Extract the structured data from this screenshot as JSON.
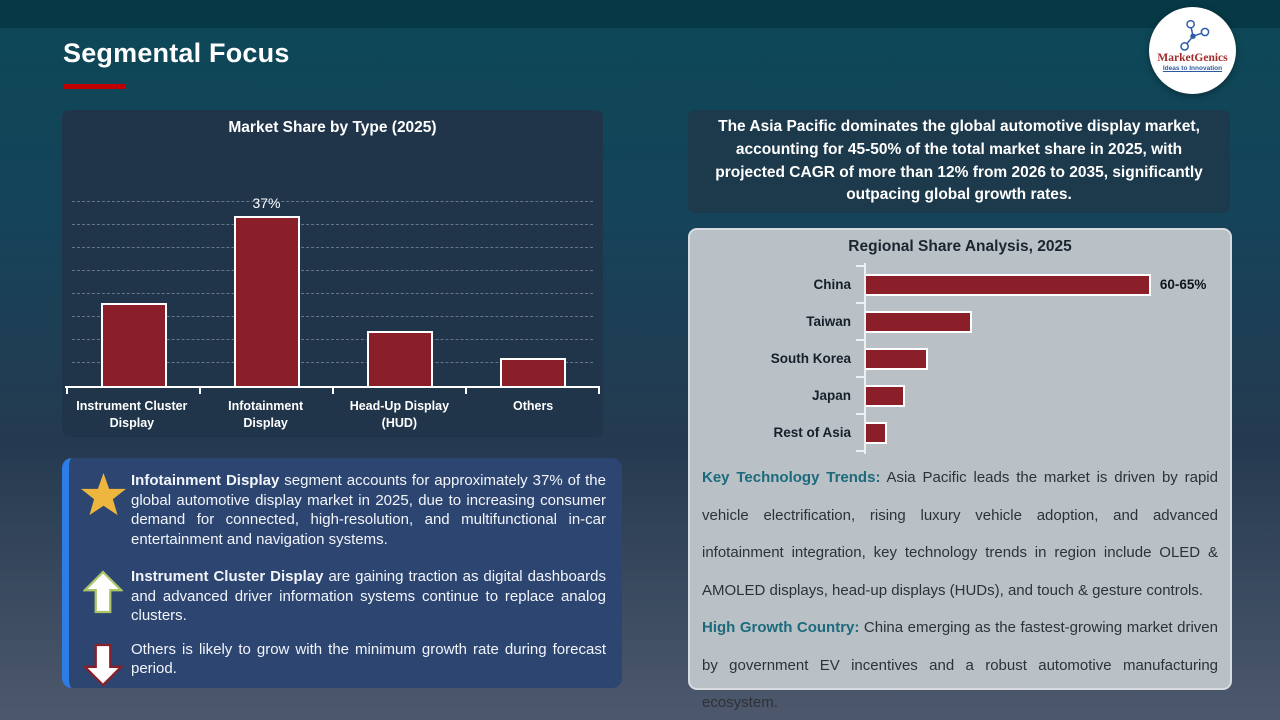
{
  "slide": {
    "title": "Segmental Focus",
    "accent_color": "#c00000",
    "bar_color": "#8b1f29"
  },
  "logo": {
    "name": "MarketGenics",
    "tagline": "Ideas to Innovation"
  },
  "statement": {
    "text": "The Asia Pacific dominates the global automotive display market, accounting for 45-50% of the total market share in 2025, with projected CAGR of more than 12% from 2026 to 2035, significantly outpacing global growth rates."
  },
  "insights": {
    "items": [
      {
        "icon": "star-icon",
        "lead": "Infotainment Display",
        "text": " segment accounts for approximately 37% of the global automotive display market in 2025, due to increasing consumer demand for connected, high-resolution, and multifunctional in-car entertainment and navigation systems."
      },
      {
        "icon": "up-arrow-icon",
        "lead": "Instrument Cluster Display",
        "text": " are gaining traction as digital dashboards and advanced driver information systems continue to replace analog clusters."
      },
      {
        "icon": "down-arrow-icon",
        "lead": "",
        "text": "Others is likely to grow with the minimum growth rate during forecast period."
      }
    ]
  },
  "regional_notes": {
    "lead_color": "#1c6a7c",
    "paragraphs": [
      {
        "lead": "Key Technology Trends:",
        "text": " Asia Pacific leads the market is driven by rapid vehicle electrification, rising luxury vehicle adoption, and advanced infotainment integration, key technology trends in region include OLED & AMOLED displays, head-up displays (HUDs), and touch & gesture controls."
      },
      {
        "lead": "High Growth Country:",
        "text": " China emerging as the fastest-growing market driven by government EV incentives and a robust automotive manufacturing ecosystem."
      }
    ]
  },
  "chart_data": [
    {
      "type": "bar",
      "orientation": "vertical",
      "title": "Market Share by Type (2025)",
      "categories": [
        "Instrument Cluster Display",
        "Infotainment Display",
        "Head-Up Display (HUD)",
        "Others"
      ],
      "values": [
        18,
        37,
        12,
        6
      ],
      "data_labels": [
        "",
        "37%",
        "",
        ""
      ],
      "unit": "%",
      "ylim": [
        0,
        40
      ],
      "gridline_step": 5,
      "grid": "dashed",
      "bar_color": "#8b1f29"
    },
    {
      "type": "bar",
      "orientation": "horizontal",
      "title": "Regional Share Analysis, 2025",
      "categories": [
        "China",
        "Taiwan",
        "South Korea",
        "Japan",
        "Rest of Asia"
      ],
      "values": [
        62.5,
        23.5,
        14,
        9,
        5
      ],
      "data_labels": [
        "60-65%",
        "",
        "",
        "",
        ""
      ],
      "unit": "%",
      "xlim": [
        0,
        75
      ],
      "grid": "off",
      "bar_color": "#8b1f29"
    }
  ]
}
